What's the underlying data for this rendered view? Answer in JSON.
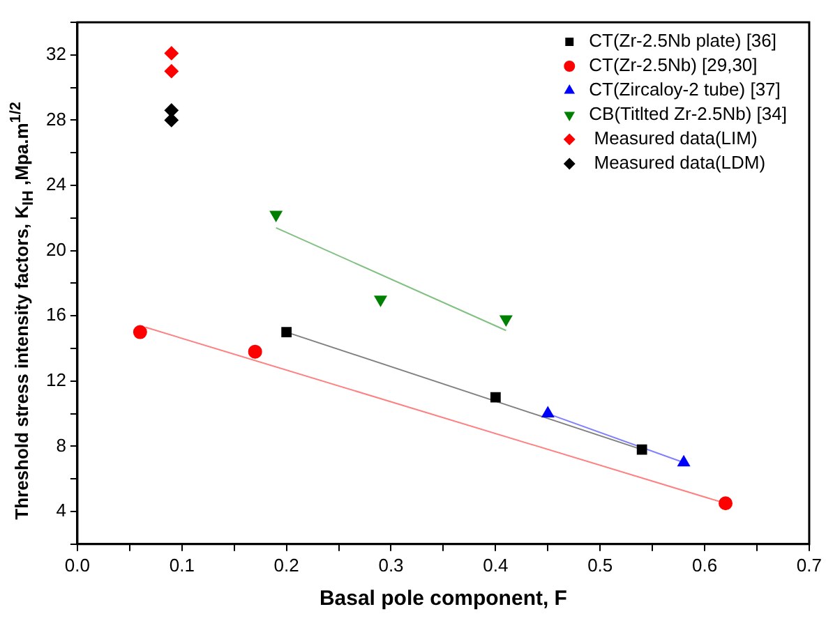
{
  "chart_data": {
    "type": "scatter",
    "xlabel": "Basal pole component, F",
    "ylabel": "Threshold stress intensity factors, K$_{IH}$ ,Mpa.m$^{1/2}$",
    "xlim": [
      0,
      0.7
    ],
    "ylim": [
      2,
      34
    ],
    "xticks": [
      {
        "value": 0,
        "label": "0.0"
      },
      {
        "value": 0.05,
        "label": null
      },
      0.1,
      {
        "value": 0.15,
        "label": null
      },
      0.2,
      {
        "value": 0.25,
        "label": null
      },
      0.3,
      {
        "value": 0.35,
        "label": null
      },
      0.4,
      {
        "value": 0.45,
        "label": null
      },
      0.5,
      {
        "value": 0.55,
        "label": null
      },
      0.6,
      {
        "value": 0.65,
        "label": null
      },
      0.7
    ],
    "yticks": [
      {
        "value": 2,
        "label": null
      },
      4,
      {
        "value": 6,
        "label": null
      },
      8,
      {
        "value": 10,
        "label": null
      },
      12,
      {
        "value": 14,
        "label": null
      },
      16,
      {
        "value": 18,
        "label": null
      },
      20,
      {
        "value": 22,
        "label": null
      },
      24,
      {
        "value": 26,
        "label": null
      },
      28,
      {
        "value": 30,
        "label": null
      },
      32,
      {
        "value": 34,
        "label": null
      }
    ],
    "grid": false,
    "legend": "top right",
    "series": [
      {
        "name": "CT(Zr-2.5Nb plate) [36]",
        "color": "#000000",
        "marker": "square",
        "x": [
          0.2,
          0.4,
          0.54
        ],
        "values": [
          15,
          11,
          7.8
        ]
      },
      {
        "name": "CT(Zr-2.5Nb) [29,30]",
        "color": "#ff0000",
        "marker": "circle",
        "x": [
          0.06,
          0.17,
          0.62
        ],
        "values": [
          15,
          13.8,
          4.5
        ]
      },
      {
        "name": "CT(Zircaloy-2 tube) [37]",
        "color": "#0000ff",
        "marker": "triangle",
        "x": [
          0.45,
          0.58
        ],
        "values": [
          10,
          7
        ]
      },
      {
        "name": "CB(Titlted Zr-2.5Nb) [34]",
        "color": "#008000",
        "marker": "triangle_down",
        "x": [
          0.19,
          0.29,
          0.41
        ],
        "values": [
          22.2,
          17,
          15.8
        ]
      },
      {
        "name": " Measured data(LIM)",
        "color": "#ff0000",
        "marker": "diamond",
        "x": [
          0.09,
          0.09
        ],
        "values": [
          32.1,
          31
        ]
      },
      {
        "name": " Measured data(LDM)",
        "color": "#000000",
        "marker": "diamond",
        "x": [
          0.09,
          0.09
        ],
        "values": [
          28.6,
          28
        ]
      },
      {
        "type": "line",
        "color": "#808080",
        "marker": "none",
        "x": [
          0.2,
          0.54
        ],
        "values": [
          15,
          7.8
        ]
      },
      {
        "type": "line",
        "color": "#ff8080",
        "marker": "none",
        "x": [
          0.065,
          0.62
        ],
        "values": [
          15.3,
          4.5
        ]
      },
      {
        "type": "line",
        "color": "#8080ff",
        "marker": "none",
        "x": [
          0.45,
          0.58
        ],
        "values": [
          10,
          7
        ]
      },
      {
        "type": "line",
        "color": "#80c080",
        "marker": "none",
        "x": [
          0.19,
          0.41
        ],
        "values": [
          21.4,
          15.1
        ]
      }
    ]
  }
}
